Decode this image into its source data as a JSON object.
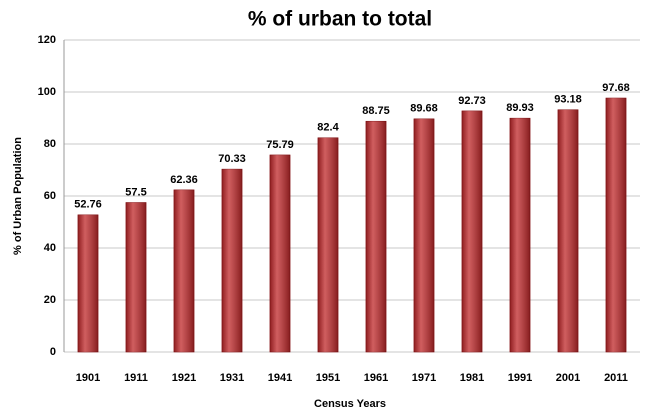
{
  "chart_data": {
    "type": "bar",
    "title": "% of urban to total",
    "x_label": "Census Years",
    "y_label": "% of Urban Population",
    "categories": [
      "1901",
      "1911",
      "1921",
      "1931",
      "1941",
      "1951",
      "1961",
      "1971",
      "1981",
      "1991",
      "2001",
      "2011"
    ],
    "values": [
      52.76,
      57.5,
      62.36,
      70.33,
      75.79,
      82.4,
      88.75,
      89.68,
      92.73,
      89.93,
      93.18,
      97.68
    ],
    "color": "#c0282a",
    "ylim": [
      0,
      120
    ],
    "yticks": [
      0,
      20,
      40,
      60,
      80,
      100,
      120
    ],
    "grid": true
  }
}
